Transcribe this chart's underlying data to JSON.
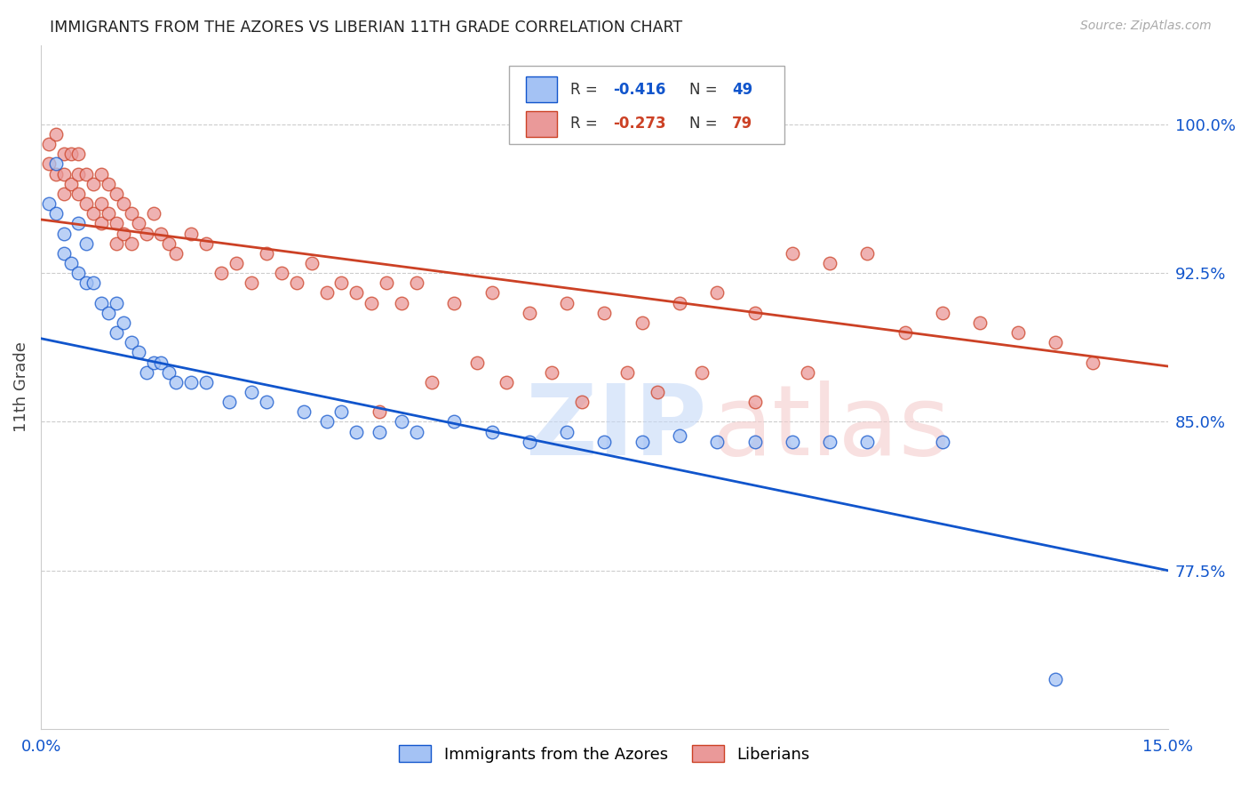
{
  "title": "IMMIGRANTS FROM THE AZORES VS LIBERIAN 11TH GRADE CORRELATION CHART",
  "source": "Source: ZipAtlas.com",
  "ylabel": "11th Grade",
  "y_tick_labels": [
    "100.0%",
    "92.5%",
    "85.0%",
    "77.5%"
  ],
  "y_tick_values": [
    1.0,
    0.925,
    0.85,
    0.775
  ],
  "xlim": [
    0.0,
    0.15
  ],
  "ylim": [
    0.695,
    1.04
  ],
  "blue_color": "#a4c2f4",
  "pink_color": "#ea9999",
  "blue_line_color": "#1155cc",
  "pink_line_color": "#cc4125",
  "blue_label": "Immigrants from the Azores",
  "pink_label": "Liberians",
  "legend_r1": "-0.416",
  "legend_n1": "49",
  "legend_r2": "-0.273",
  "legend_n2": "79",
  "blue_trend_x": [
    0.0,
    0.15
  ],
  "blue_trend_y": [
    0.892,
    0.775
  ],
  "pink_trend_x": [
    0.0,
    0.15
  ],
  "pink_trend_y": [
    0.952,
    0.878
  ],
  "blue_x": [
    0.001,
    0.002,
    0.002,
    0.003,
    0.003,
    0.004,
    0.005,
    0.005,
    0.006,
    0.006,
    0.007,
    0.008,
    0.009,
    0.01,
    0.01,
    0.011,
    0.012,
    0.013,
    0.014,
    0.015,
    0.016,
    0.017,
    0.018,
    0.02,
    0.022,
    0.025,
    0.028,
    0.03,
    0.035,
    0.038,
    0.04,
    0.042,
    0.045,
    0.048,
    0.05,
    0.055,
    0.06,
    0.065,
    0.07,
    0.075,
    0.08,
    0.085,
    0.09,
    0.095,
    0.1,
    0.105,
    0.11,
    0.12,
    0.135
  ],
  "blue_y": [
    0.96,
    0.98,
    0.955,
    0.945,
    0.935,
    0.93,
    0.95,
    0.925,
    0.94,
    0.92,
    0.92,
    0.91,
    0.905,
    0.91,
    0.895,
    0.9,
    0.89,
    0.885,
    0.875,
    0.88,
    0.88,
    0.875,
    0.87,
    0.87,
    0.87,
    0.86,
    0.865,
    0.86,
    0.855,
    0.85,
    0.855,
    0.845,
    0.845,
    0.85,
    0.845,
    0.85,
    0.845,
    0.84,
    0.845,
    0.84,
    0.84,
    0.843,
    0.84,
    0.84,
    0.84,
    0.84,
    0.84,
    0.84,
    0.72
  ],
  "pink_x": [
    0.001,
    0.001,
    0.002,
    0.002,
    0.003,
    0.003,
    0.003,
    0.004,
    0.004,
    0.005,
    0.005,
    0.005,
    0.006,
    0.006,
    0.007,
    0.007,
    0.008,
    0.008,
    0.008,
    0.009,
    0.009,
    0.01,
    0.01,
    0.01,
    0.011,
    0.011,
    0.012,
    0.012,
    0.013,
    0.014,
    0.015,
    0.016,
    0.017,
    0.018,
    0.02,
    0.022,
    0.024,
    0.026,
    0.028,
    0.03,
    0.032,
    0.034,
    0.036,
    0.038,
    0.04,
    0.042,
    0.044,
    0.046,
    0.048,
    0.05,
    0.055,
    0.06,
    0.065,
    0.07,
    0.075,
    0.08,
    0.085,
    0.09,
    0.095,
    0.1,
    0.105,
    0.11,
    0.115,
    0.12,
    0.125,
    0.13,
    0.135,
    0.14,
    0.045,
    0.052,
    0.058,
    0.062,
    0.068,
    0.072,
    0.078,
    0.082,
    0.088,
    0.095,
    0.102
  ],
  "pink_y": [
    0.99,
    0.98,
    0.995,
    0.975,
    0.985,
    0.975,
    0.965,
    0.985,
    0.97,
    0.985,
    0.975,
    0.965,
    0.975,
    0.96,
    0.97,
    0.955,
    0.975,
    0.96,
    0.95,
    0.97,
    0.955,
    0.965,
    0.95,
    0.94,
    0.96,
    0.945,
    0.955,
    0.94,
    0.95,
    0.945,
    0.955,
    0.945,
    0.94,
    0.935,
    0.945,
    0.94,
    0.925,
    0.93,
    0.92,
    0.935,
    0.925,
    0.92,
    0.93,
    0.915,
    0.92,
    0.915,
    0.91,
    0.92,
    0.91,
    0.92,
    0.91,
    0.915,
    0.905,
    0.91,
    0.905,
    0.9,
    0.91,
    0.915,
    0.905,
    0.935,
    0.93,
    0.935,
    0.895,
    0.905,
    0.9,
    0.895,
    0.89,
    0.88,
    0.855,
    0.87,
    0.88,
    0.87,
    0.875,
    0.86,
    0.875,
    0.865,
    0.875,
    0.86,
    0.875
  ]
}
